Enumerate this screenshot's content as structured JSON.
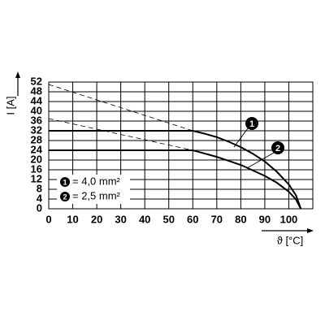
{
  "chart_data": {
    "type": "line",
    "x_label": "ϑ [°C]",
    "y_label": "I [A]",
    "xlim": [
      0,
      110
    ],
    "xticks": [
      0,
      10,
      20,
      30,
      40,
      50,
      60,
      70,
      80,
      90,
      100
    ],
    "ylim": [
      0,
      52
    ],
    "yticks": [
      0,
      4,
      8,
      12,
      16,
      20,
      24,
      28,
      32,
      36,
      40,
      44,
      48,
      52
    ],
    "grid": true,
    "series": [
      {
        "name": "= 4,0 mm²",
        "marker_label": "1",
        "color": "#000000",
        "x": [
          0,
          60,
          65,
          70,
          75,
          80,
          85,
          90,
          95,
          100,
          103,
          105
        ],
        "values": [
          32,
          32,
          30.8,
          29.4,
          27.5,
          25.3,
          22.6,
          19.4,
          15.2,
          10,
          5.5,
          0
        ],
        "extension": {
          "x": [
            0,
            60
          ],
          "values": [
            51,
            32
          ]
        }
      },
      {
        "name": "= 2,5 mm²",
        "marker_label": "2",
        "color": "#000000",
        "x": [
          0,
          60,
          70,
          80,
          90,
          95,
          100,
          103,
          105
        ],
        "values": [
          24,
          24,
          21.3,
          18,
          13.5,
          10.7,
          7,
          3.8,
          0
        ],
        "extension": {
          "x": [
            0,
            60
          ],
          "values": [
            37,
            24
          ]
        }
      }
    ]
  }
}
